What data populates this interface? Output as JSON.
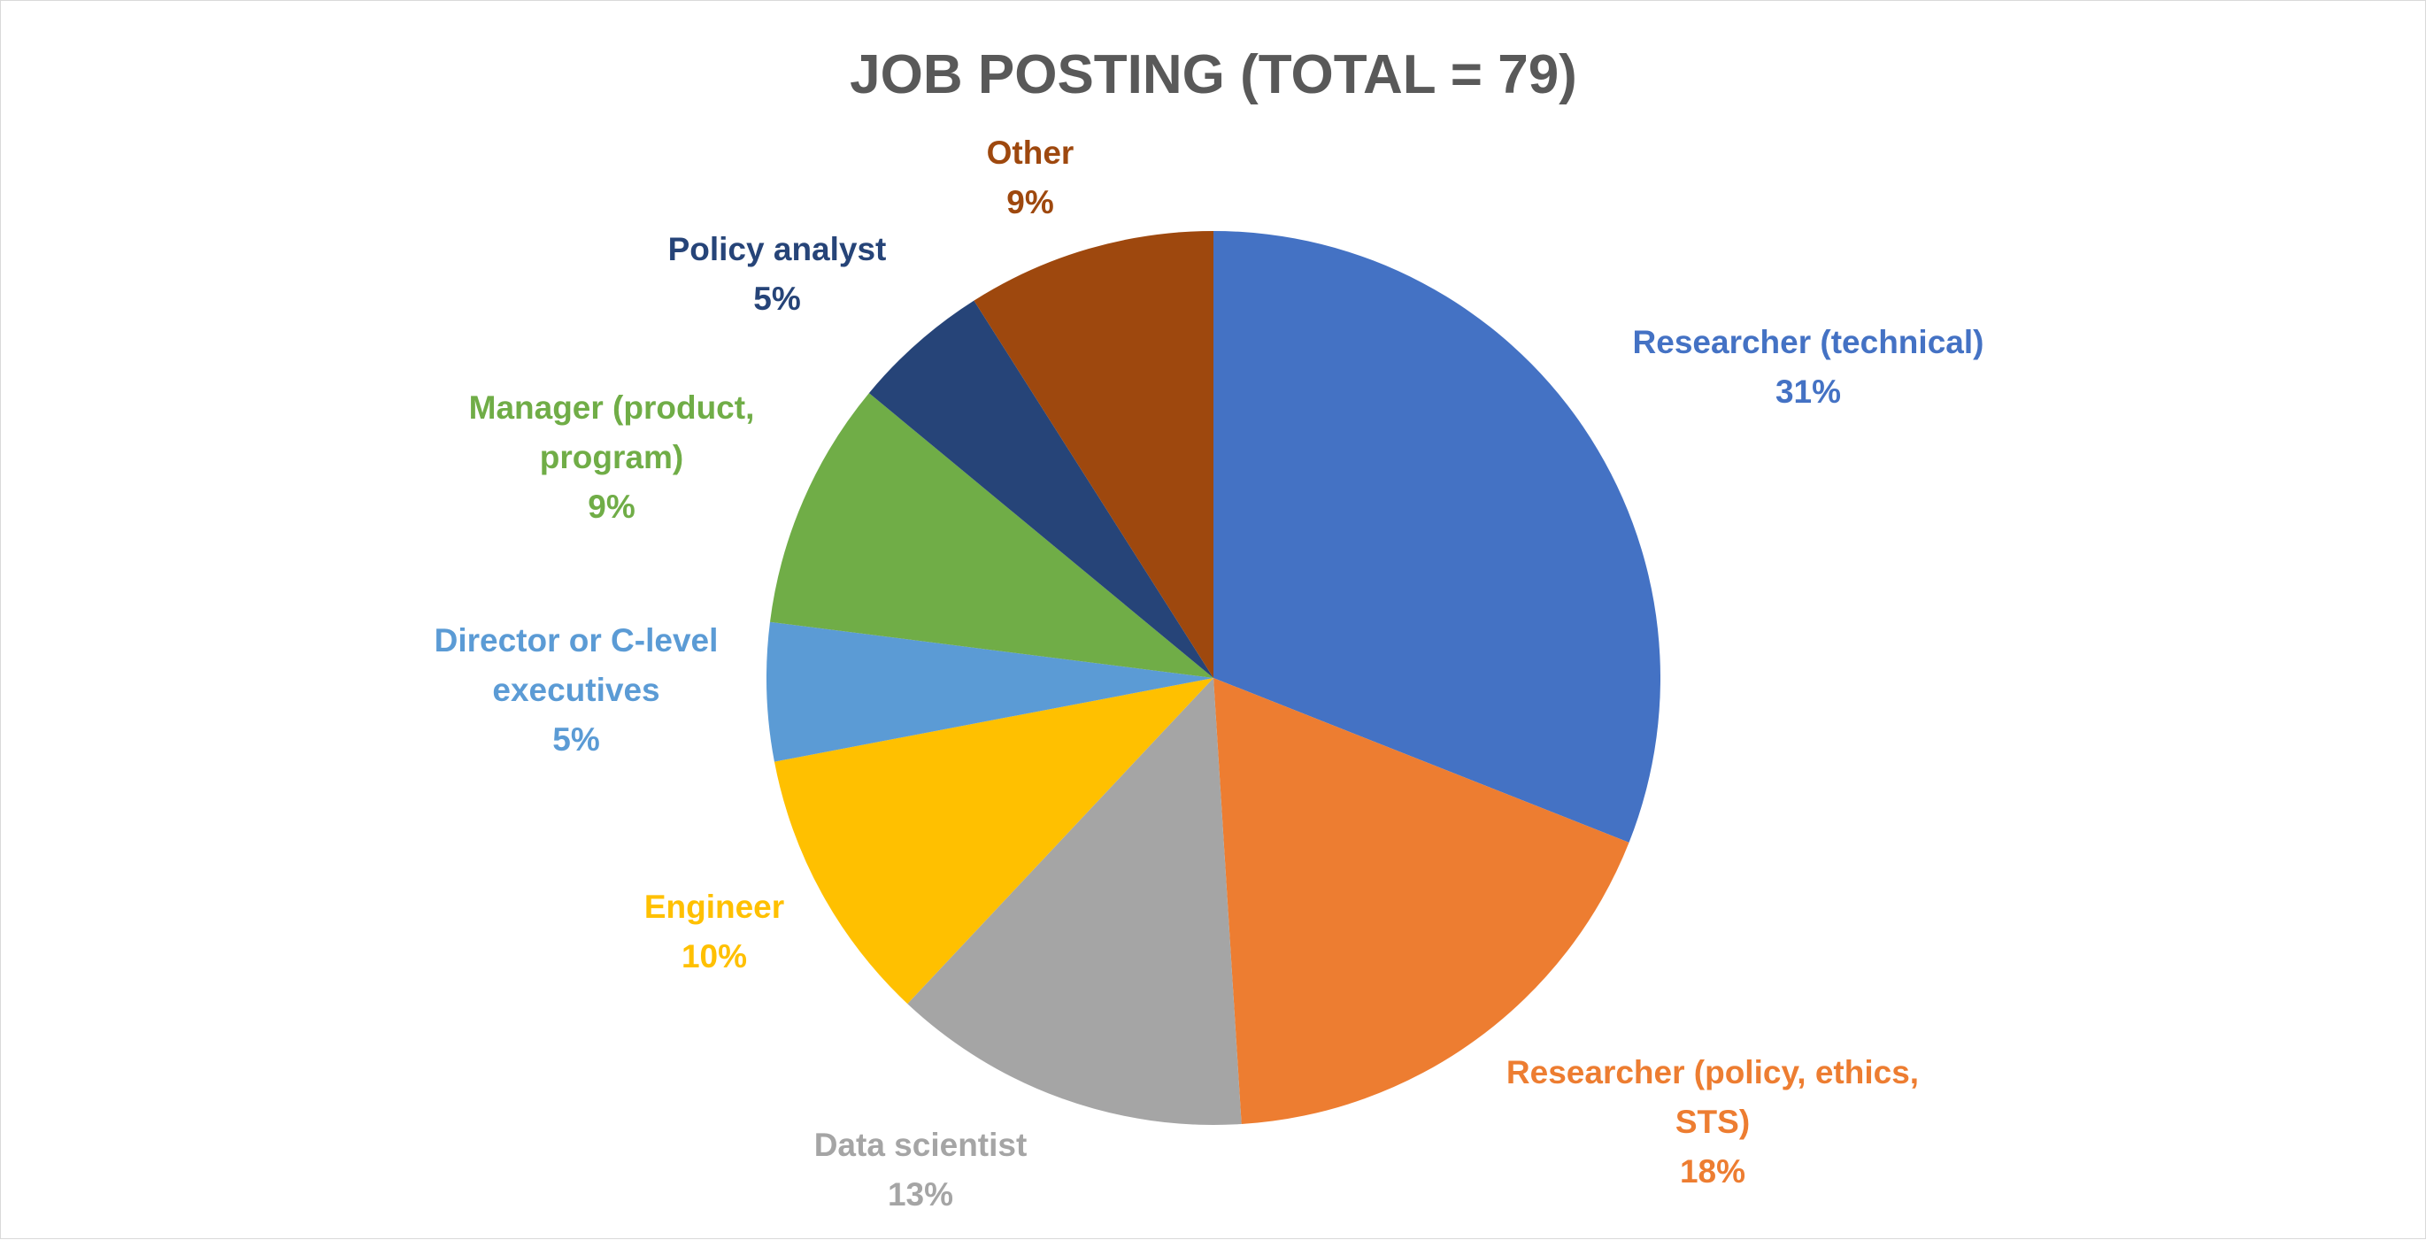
{
  "chart_data": {
    "type": "pie",
    "title": "JOB POSTING (TOTAL = 79)",
    "start_angle_deg": 0,
    "direction": "clockwise",
    "slices": [
      {
        "name": "Researcher (technical)",
        "label_lines": [
          "Researcher (technical)"
        ],
        "percent_label": "31%",
        "value": 31,
        "color": "#4472C4"
      },
      {
        "name": "Researcher (policy, ethics, STS)",
        "label_lines": [
          "Researcher (policy, ethics,",
          "STS)"
        ],
        "percent_label": "18%",
        "value": 18,
        "color": "#ED7D31"
      },
      {
        "name": "Data scientist",
        "label_lines": [
          "Data scientist"
        ],
        "percent_label": "13%",
        "value": 13,
        "color": "#A5A5A5"
      },
      {
        "name": "Engineer",
        "label_lines": [
          "Engineer"
        ],
        "percent_label": "10%",
        "value": 10,
        "color": "#FFC000"
      },
      {
        "name": "Director or C-level executives",
        "label_lines": [
          "Director or C-level",
          "executives"
        ],
        "percent_label": "5%",
        "value": 5,
        "color": "#5B9BD5"
      },
      {
        "name": "Manager (product, program)",
        "label_lines": [
          "Manager (product,",
          "program)"
        ],
        "percent_label": "9%",
        "value": 9,
        "color": "#70AD47"
      },
      {
        "name": "Policy analyst",
        "label_lines": [
          "Policy analyst"
        ],
        "percent_label": "5%",
        "value": 5,
        "color": "#264478"
      },
      {
        "name": "Other",
        "label_lines": [
          "Other"
        ],
        "percent_label": "9%",
        "value": 9,
        "color": "#9E480E"
      }
    ],
    "title_color": "#595959",
    "legend": "none"
  }
}
